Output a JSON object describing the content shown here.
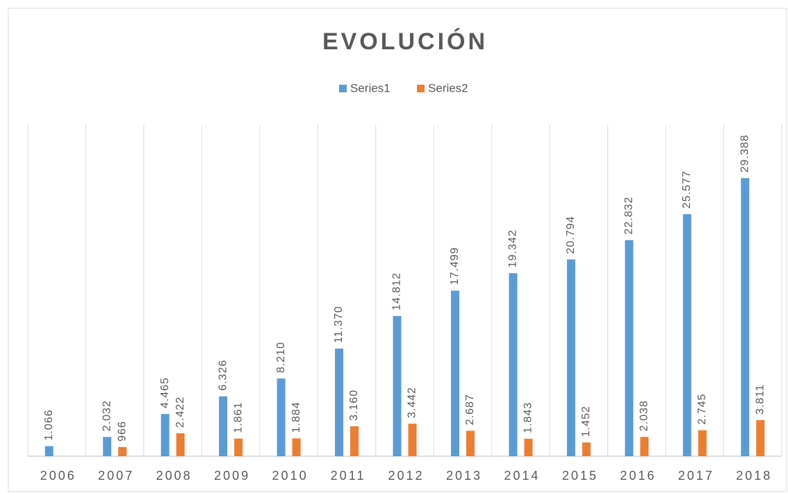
{
  "chart_data": {
    "type": "bar",
    "title": "EVOLUCIÓN",
    "categories": [
      "2006",
      "2007",
      "2008",
      "2009",
      "2010",
      "2011",
      "2012",
      "2013",
      "2014",
      "2015",
      "2016",
      "2017",
      "2018"
    ],
    "series": [
      {
        "name": "Series1",
        "color": "#5b9bd5",
        "values": [
          1066,
          2032,
          4465,
          6326,
          8210,
          11370,
          14812,
          17499,
          19342,
          20794,
          22832,
          25577,
          29388
        ],
        "value_labels": [
          "1.066",
          "2.032",
          "4.465",
          "6.326",
          "8.210",
          "11.370",
          "14.812",
          "17.499",
          "19.342",
          "20.794",
          "22.832",
          "25.577",
          "29.388"
        ]
      },
      {
        "name": "Series2",
        "color": "#ed7d31",
        "values": [
          null,
          966,
          2422,
          1861,
          1884,
          3160,
          3442,
          2687,
          1843,
          1452,
          2038,
          2745,
          3811
        ],
        "value_labels": [
          null,
          "966",
          "2.422",
          "1.861",
          "1.884",
          "3.160",
          "3.442",
          "2.687",
          "1.843",
          "1.452",
          "2.038",
          "2.745",
          "3.811"
        ]
      }
    ],
    "ylim": [
      0,
      35000
    ],
    "legend": "top",
    "grid": "vertical"
  }
}
